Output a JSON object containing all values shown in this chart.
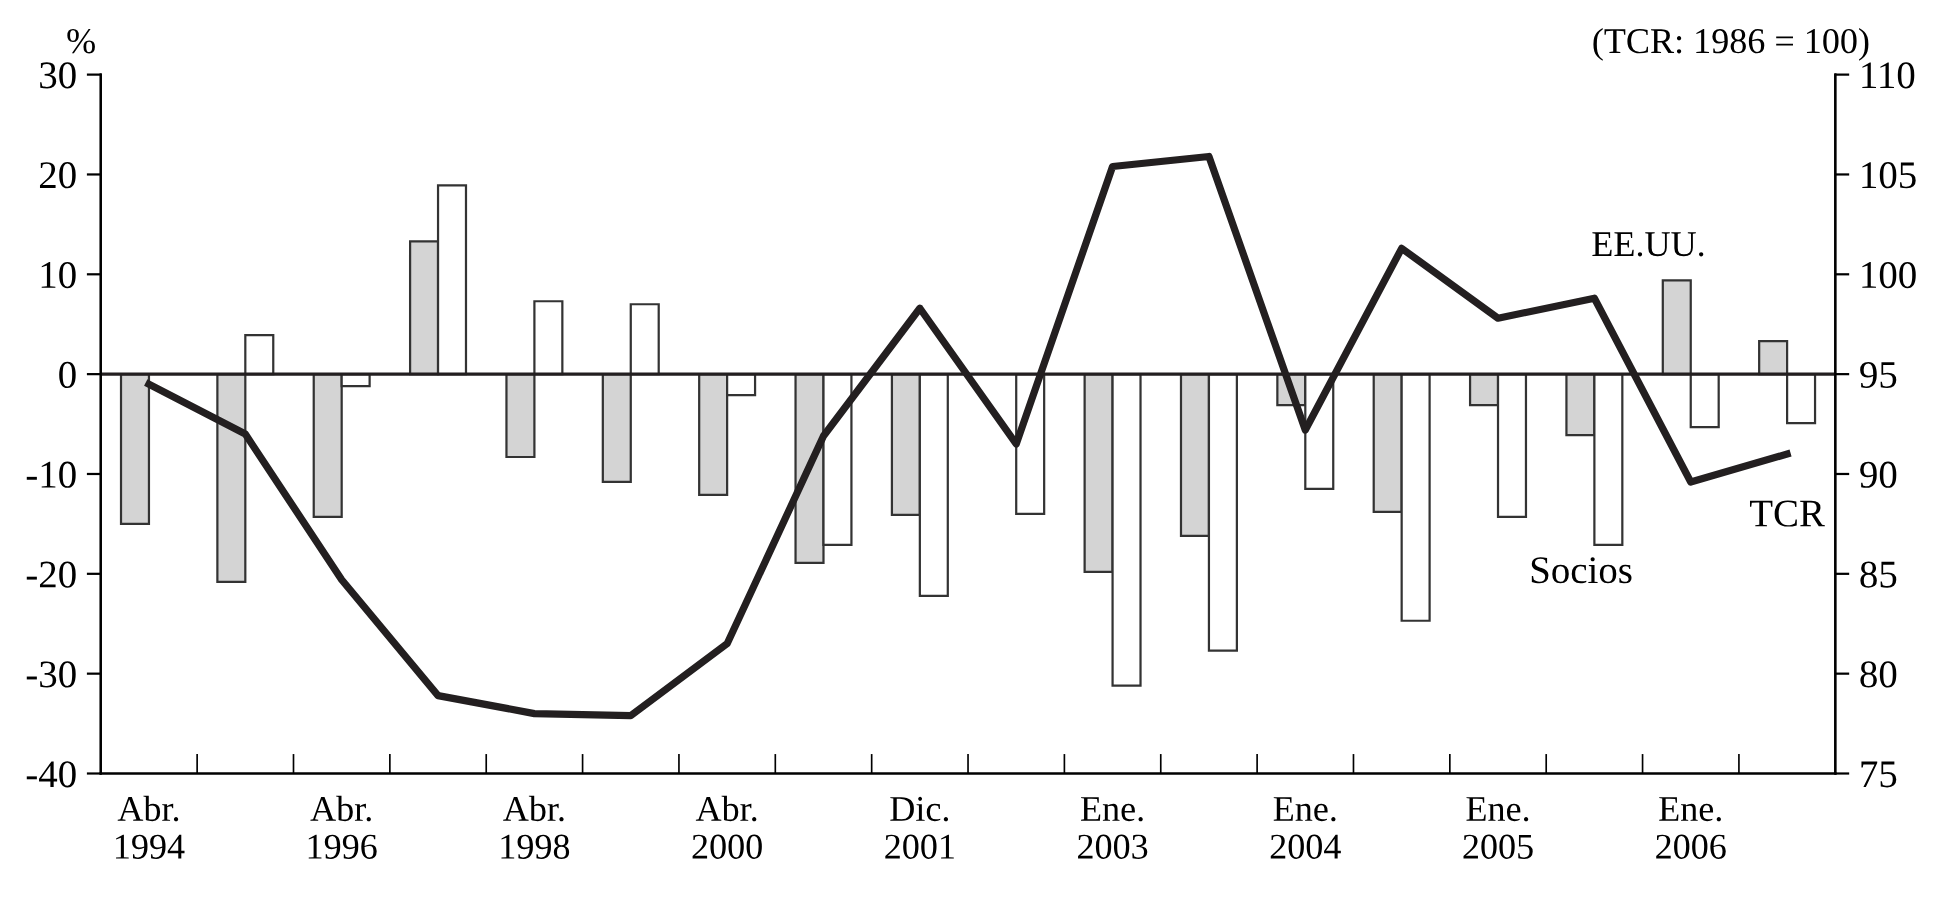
{
  "chart_data": {
    "type": "bar",
    "ylabel": "%",
    "y2label": "(TCR: 1986 = 100)",
    "categories": [
      "Abr.\n1994",
      null,
      "Abr.\n1996",
      null,
      "Abr.\n1998",
      null,
      "Abr.\n2000",
      null,
      "Dic.\n2001",
      null,
      "Ene.\n2003",
      null,
      "Ene.\n2004",
      null,
      "Ene.\n2005",
      null,
      "Ene.\n2006",
      null
    ],
    "series": [
      {
        "name": "EE.UU.",
        "color": "#d4d4d4",
        "values": [
          -15.0,
          -20.8,
          -14.3,
          13.3,
          -8.3,
          -10.8,
          -12.1,
          -18.9,
          -14.1,
          null,
          -19.8,
          -16.2,
          -3.1,
          -13.8,
          -3.1,
          -6.1,
          9.4,
          3.3
        ]
      },
      {
        "name": "Socios",
        "color": "#ffffff",
        "values": [
          null,
          3.9,
          -1.2,
          18.9,
          7.3,
          7.0,
          -2.1,
          -17.1,
          -22.2,
          -14.0,
          -31.2,
          -27.7,
          -11.5,
          -24.7,
          -14.3,
          -17.1,
          -5.3,
          -4.9
        ]
      },
      {
        "name": "TCR",
        "type": "line",
        "axis": "y2",
        "color": "#231f20",
        "values": [
          94.5,
          92.0,
          84.7,
          78.9,
          78.0,
          77.9,
          81.5,
          91.9,
          98.3,
          91.5,
          105.4,
          105.9,
          92.2,
          101.3,
          97.8,
          98.8,
          89.6,
          91.0
        ]
      }
    ],
    "ylim": [
      -40,
      30
    ],
    "yticks": [
      -40,
      -30,
      -20,
      -10,
      0,
      10,
      20,
      30
    ],
    "y2lim": [
      75,
      110
    ],
    "y2ticks": [
      75,
      80,
      85,
      90,
      95,
      100,
      105,
      110
    ],
    "ref_lines": [
      {
        "axis": "y",
        "value": 0
      }
    ],
    "grid": false,
    "legend": false,
    "marker": "none",
    "line_style": "solid"
  }
}
